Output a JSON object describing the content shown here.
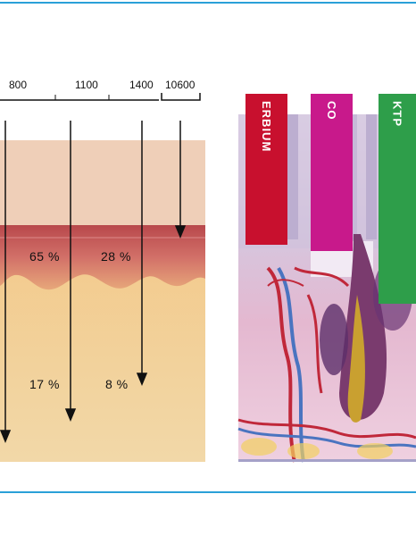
{
  "wavelengths": {
    "w800": "800",
    "w1100": "1100",
    "w1400": "1400",
    "w10600": "10600"
  },
  "percentages": {
    "epidermis_1100": "65 %",
    "epidermis_1400": "28 %",
    "dermis_1100": "17 %",
    "dermis_1400": "8 %"
  },
  "lasers": [
    {
      "name": "ERBIUM",
      "color": "#c8102e"
    },
    {
      "name": "CO",
      "color": "#c8198b"
    },
    {
      "name": "KTP",
      "color": "#2e9e4a"
    }
  ],
  "colors": {
    "accent_line": "#2aa0d8",
    "skin_top": "#efcfb4",
    "skin_band": "#c95a5a",
    "skin_deep": "#efcf9a"
  }
}
